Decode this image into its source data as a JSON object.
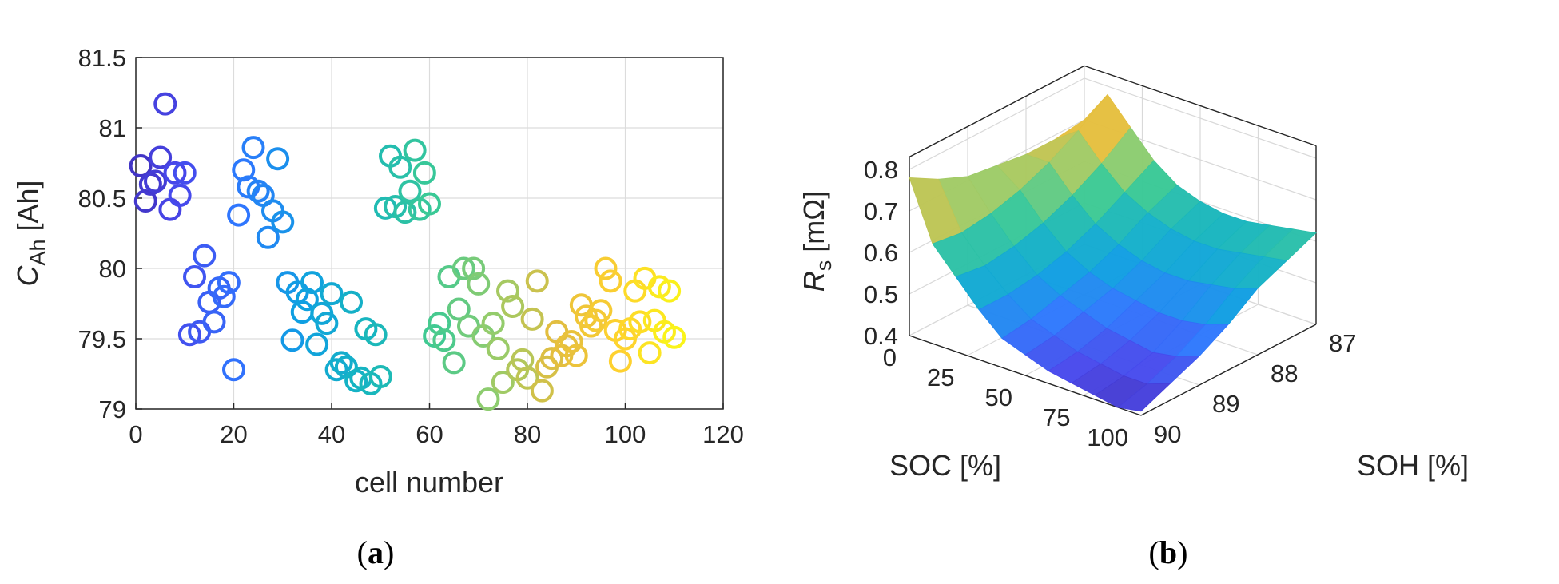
{
  "chart_data": [
    {
      "type": "scatter",
      "panel_label": "a",
      "xlabel": "cell number",
      "ylabel_symbol": "C",
      "ylabel_subscript": "Ah",
      "ylabel_unit": "[Ah]",
      "xlim": [
        0,
        120
      ],
      "ylim": [
        79,
        81.5
      ],
      "xticks": [
        "0",
        "20",
        "40",
        "60",
        "80",
        "100",
        "120"
      ],
      "yticks": [
        "79",
        "79.5",
        "80",
        "80.5",
        "81",
        "81.5"
      ],
      "grid": true,
      "marker": "open-circle",
      "colormap": "parula",
      "points": [
        [
          1,
          80.73
        ],
        [
          2,
          80.48
        ],
        [
          3,
          80.6
        ],
        [
          4,
          80.62
        ],
        [
          5,
          80.79
        ],
        [
          6,
          81.17
        ],
        [
          7,
          80.42
        ],
        [
          8,
          80.68
        ],
        [
          9,
          80.52
        ],
        [
          10,
          80.68
        ],
        [
          11,
          79.53
        ],
        [
          12,
          79.94
        ],
        [
          13,
          79.55
        ],
        [
          14,
          80.09
        ],
        [
          15,
          79.76
        ],
        [
          16,
          79.62
        ],
        [
          17,
          79.86
        ],
        [
          18,
          79.8
        ],
        [
          19,
          79.9
        ],
        [
          20,
          79.28
        ],
        [
          21,
          80.38
        ],
        [
          22,
          80.7
        ],
        [
          23,
          80.58
        ],
        [
          24,
          80.86
        ],
        [
          25,
          80.55
        ],
        [
          26,
          80.52
        ],
        [
          27,
          80.22
        ],
        [
          28,
          80.41
        ],
        [
          29,
          80.78
        ],
        [
          30,
          80.33
        ],
        [
          31,
          79.9
        ],
        [
          32,
          79.49
        ],
        [
          33,
          79.83
        ],
        [
          34,
          79.69
        ],
        [
          35,
          79.78
        ],
        [
          36,
          79.9
        ],
        [
          37,
          79.46
        ],
        [
          38,
          79.68
        ],
        [
          39,
          79.61
        ],
        [
          40,
          79.82
        ],
        [
          41,
          79.28
        ],
        [
          42,
          79.33
        ],
        [
          43,
          79.3
        ],
        [
          44,
          79.76
        ],
        [
          45,
          79.2
        ],
        [
          46,
          79.22
        ],
        [
          47,
          79.57
        ],
        [
          48,
          79.18
        ],
        [
          49,
          79.53
        ],
        [
          50,
          79.23
        ],
        [
          51,
          80.43
        ],
        [
          52,
          80.8
        ],
        [
          53,
          80.44
        ],
        [
          54,
          80.72
        ],
        [
          55,
          80.4
        ],
        [
          56,
          80.55
        ],
        [
          57,
          80.84
        ],
        [
          58,
          80.42
        ],
        [
          59,
          80.68
        ],
        [
          60,
          80.46
        ],
        [
          61,
          79.52
        ],
        [
          62,
          79.61
        ],
        [
          63,
          79.49
        ],
        [
          64,
          79.94
        ],
        [
          65,
          79.33
        ],
        [
          66,
          79.71
        ],
        [
          67,
          80.0
        ],
        [
          68,
          79.59
        ],
        [
          69,
          80.0
        ],
        [
          70,
          79.89
        ],
        [
          71,
          79.52
        ],
        [
          72,
          79.07
        ],
        [
          73,
          79.61
        ],
        [
          74,
          79.43
        ],
        [
          75,
          79.19
        ],
        [
          76,
          79.84
        ],
        [
          77,
          79.73
        ],
        [
          78,
          79.28
        ],
        [
          79,
          79.35
        ],
        [
          80,
          79.22
        ],
        [
          81,
          79.64
        ],
        [
          82,
          79.91
        ],
        [
          83,
          79.13
        ],
        [
          84,
          79.3
        ],
        [
          85,
          79.36
        ],
        [
          86,
          79.55
        ],
        [
          87,
          79.38
        ],
        [
          88,
          79.45
        ],
        [
          89,
          79.48
        ],
        [
          90,
          79.38
        ],
        [
          91,
          79.74
        ],
        [
          92,
          79.66
        ],
        [
          93,
          79.59
        ],
        [
          94,
          79.63
        ],
        [
          95,
          79.7
        ],
        [
          96,
          80.0
        ],
        [
          97,
          79.91
        ],
        [
          98,
          79.56
        ],
        [
          99,
          79.34
        ],
        [
          100,
          79.5
        ],
        [
          101,
          79.57
        ],
        [
          102,
          79.84
        ],
        [
          103,
          79.62
        ],
        [
          104,
          79.93
        ],
        [
          105,
          79.4
        ],
        [
          106,
          79.63
        ],
        [
          107,
          79.87
        ],
        [
          108,
          79.55
        ],
        [
          109,
          79.84
        ],
        [
          110,
          79.51
        ]
      ]
    },
    {
      "type": "surface",
      "panel_label": "b",
      "xlabel": "SOC [%]",
      "ylabel": "SOH [%]",
      "zlabel_symbol": "R",
      "zlabel_subscript": "s",
      "zlabel_unit": "[mΩ]",
      "soc_ticks": [
        "0",
        "25",
        "50",
        "75",
        "100"
      ],
      "soh_ticks": [
        "87",
        "88",
        "89",
        "90"
      ],
      "z_ticks": [
        "0.4",
        "0.5",
        "0.6",
        "0.7",
        "0.8"
      ],
      "soc_range": [
        0,
        100
      ],
      "soh_range": [
        87,
        90
      ],
      "z_range": [
        0.4,
        0.8
      ],
      "colormap": "parula",
      "soc_values": [
        0,
        10,
        20,
        30,
        40,
        50,
        60,
        70,
        80,
        90,
        100
      ],
      "soh_values": [
        90,
        89.5,
        89,
        88.5,
        88,
        87.5,
        87
      ],
      "rs_values": [
        [
          0.78,
          0.64,
          0.58,
          0.52,
          0.47,
          0.45,
          0.43,
          0.42,
          0.41,
          0.4,
          0.41
        ],
        [
          0.74,
          0.63,
          0.57,
          0.52,
          0.48,
          0.46,
          0.44,
          0.43,
          0.42,
          0.42,
          0.44
        ],
        [
          0.71,
          0.64,
          0.58,
          0.53,
          0.5,
          0.48,
          0.46,
          0.45,
          0.44,
          0.45,
          0.47
        ],
        [
          0.7,
          0.66,
          0.6,
          0.55,
          0.52,
          0.5,
          0.49,
          0.48,
          0.48,
          0.49,
          0.51
        ],
        [
          0.69,
          0.69,
          0.63,
          0.58,
          0.55,
          0.53,
          0.52,
          0.52,
          0.53,
          0.54,
          0.56
        ],
        [
          0.69,
          0.73,
          0.67,
          0.62,
          0.59,
          0.57,
          0.56,
          0.56,
          0.57,
          0.58,
          0.59
        ],
        [
          0.7,
          0.78,
          0.72,
          0.66,
          0.62,
          0.6,
          0.59,
          0.59,
          0.6,
          0.61,
          0.62
        ]
      ]
    }
  ],
  "captions": {
    "a": "a",
    "b": "b"
  }
}
